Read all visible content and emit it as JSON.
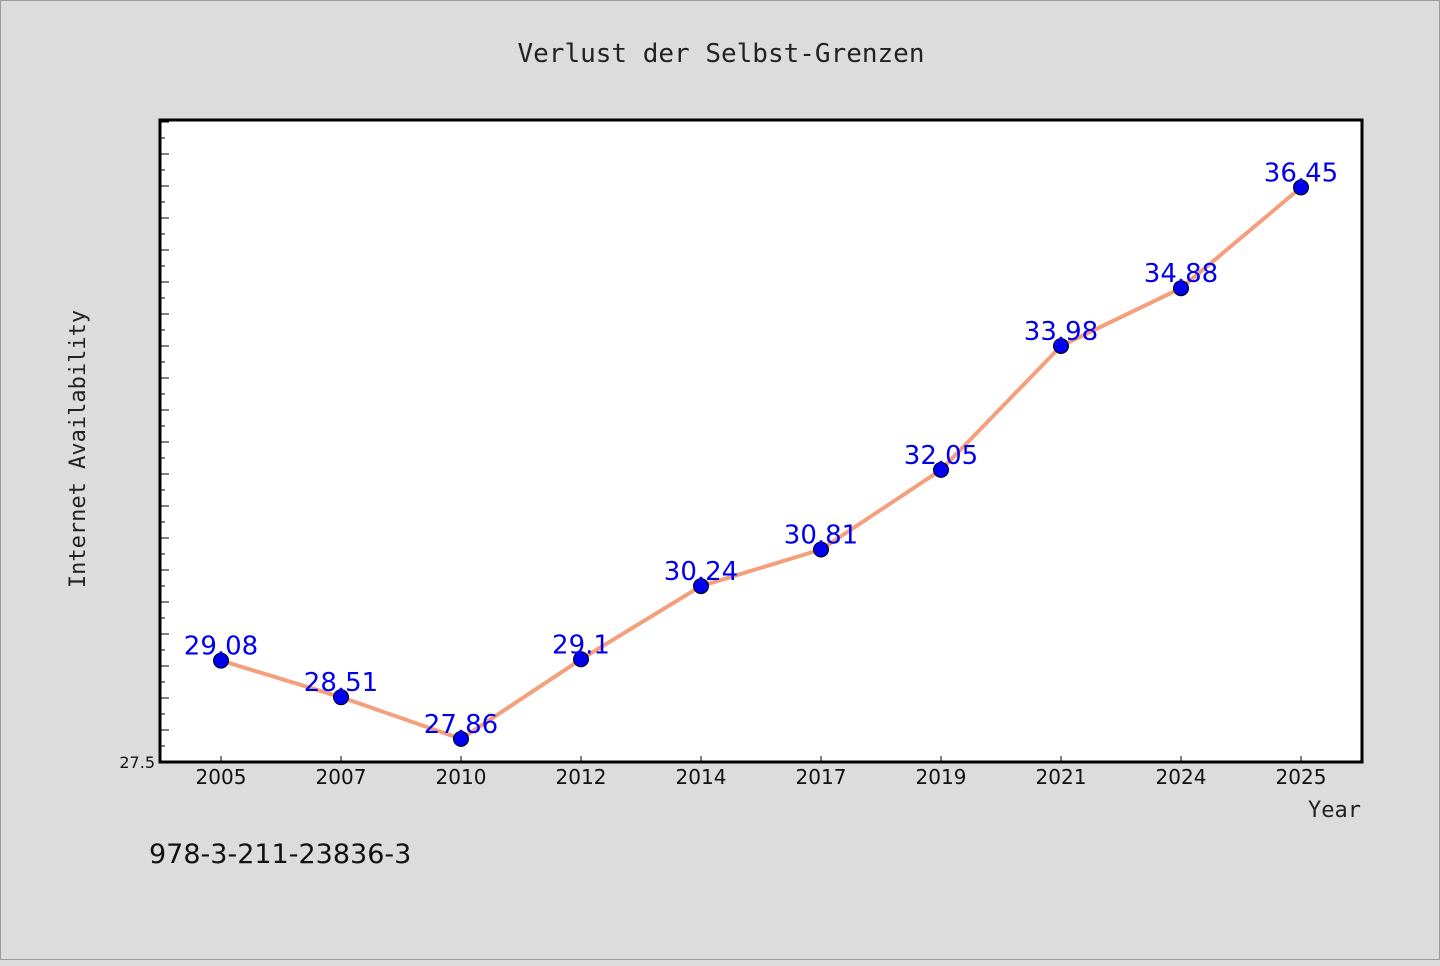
{
  "chart_data": {
    "type": "line",
    "title": "Verlust der Selbst-Grenzen",
    "xlabel": "Year",
    "ylabel": "Internet Availability",
    "categories": [
      "2005",
      "2007",
      "2010",
      "2012",
      "2014",
      "2017",
      "2019",
      "2021",
      "2024",
      "2025"
    ],
    "series": [
      {
        "values": [
          29.08,
          28.51,
          27.86,
          29.1,
          30.24,
          30.81,
          32.05,
          33.98,
          34.88,
          36.45
        ],
        "data_labels": [
          "29.08",
          "28.51",
          "27.86",
          "29.1",
          "30.24",
          "30.81",
          "32.05",
          "33.98",
          "34.88",
          "36.45"
        ]
      }
    ],
    "y_tick_labels": [
      "27.5"
    ],
    "ylim": [
      27.5,
      37.5
    ],
    "grid": false,
    "colors": {
      "line": "#f4a07c",
      "marker": "#0000ee",
      "data_label": "#0000ee",
      "plot_bg": "#ffffff",
      "page_bg": "#dcdcdc"
    }
  },
  "footer": {
    "isbn": "978-3-211-23836-3"
  }
}
